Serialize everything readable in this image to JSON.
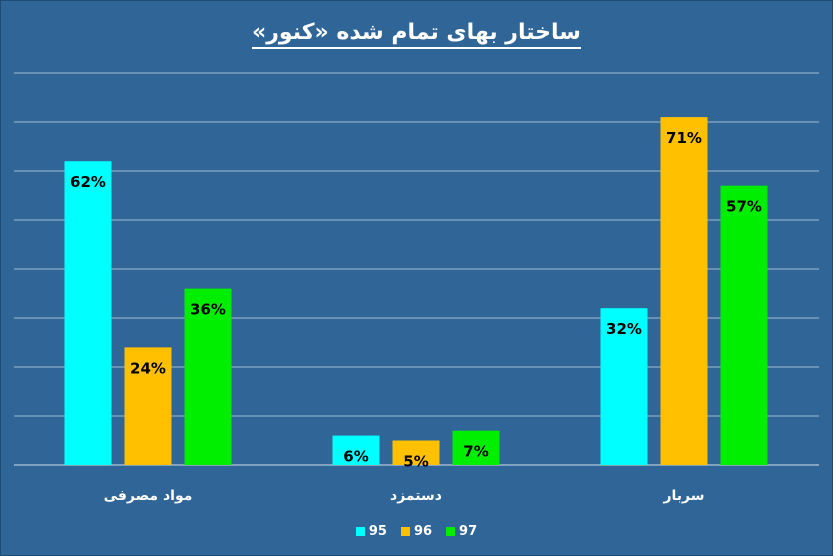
{
  "chart_data": {
    "type": "bar",
    "title": "ساختار بهای تمام شده «کنور»",
    "categories": [
      "مواد مصرفی",
      "دستمزد",
      "سربار"
    ],
    "series": [
      {
        "name": "95",
        "values": [
          62,
          6,
          32
        ],
        "labels": [
          "62%",
          "6%",
          "32%"
        ],
        "color": "#00ffff"
      },
      {
        "name": "96",
        "values": [
          24,
          5,
          71
        ],
        "labels": [
          "24%",
          "5%",
          "71%"
        ],
        "color": "#ffc000"
      },
      {
        "name": "97",
        "values": [
          36,
          7,
          57
        ],
        "labels": [
          "36%",
          "7%",
          "57%"
        ],
        "color": "#00ee00"
      }
    ],
    "ylim": [
      0,
      80
    ],
    "gridlines": true,
    "legend_position": "bottom",
    "colors": {
      "background": "#2f6597",
      "grid": "#ffffff",
      "text": "#ffffff",
      "label": "#000000"
    }
  }
}
